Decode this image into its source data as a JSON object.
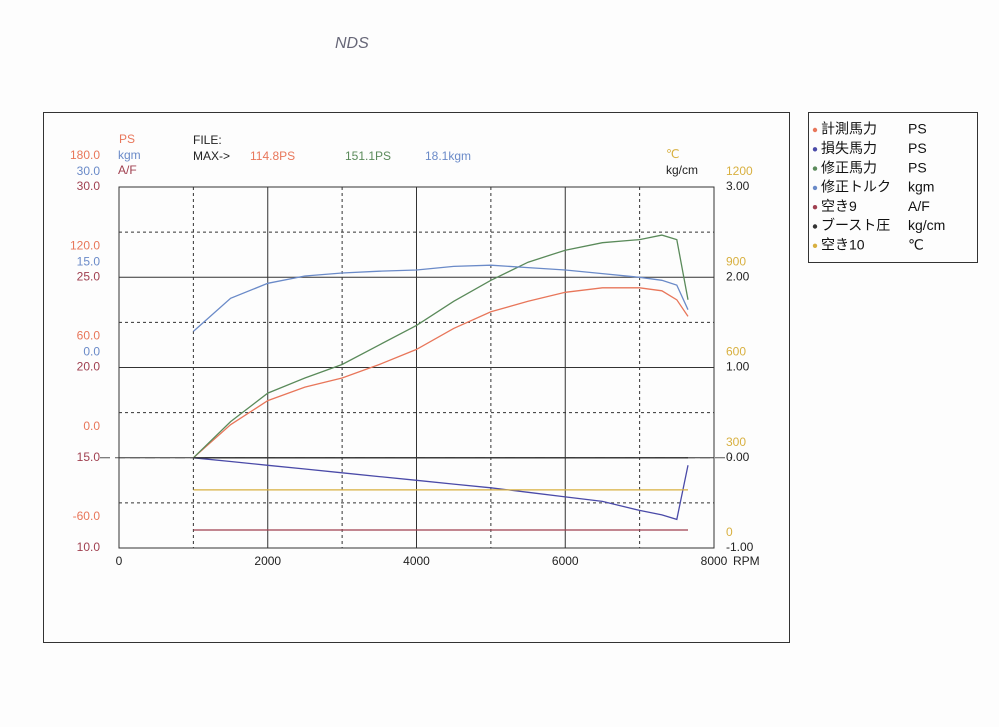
{
  "chart_data": {
    "type": "line",
    "annotation": "NDS",
    "file_label": "FILE:",
    "max_label": "MAX->",
    "max_values": [
      {
        "text": "114.8PS",
        "color": "#e8765a"
      },
      {
        "text": "151.1PS",
        "color": "#5a8a5a"
      },
      {
        "text": "18.1kgm",
        "color": "#6a8ac8"
      }
    ],
    "x_label": "RPM",
    "xlim": [
      0,
      8000
    ],
    "xticks": [
      0,
      2000,
      4000,
      6000,
      8000
    ],
    "x_minor_grid": [
      1000,
      3000,
      5000,
      7000
    ],
    "grid": true,
    "axes": [
      {
        "title": "PS",
        "side": "left",
        "color": "#e8765a",
        "lim": [
          -60,
          180
        ],
        "ticks": [
          {
            "value": 180,
            "label": "180.0"
          },
          {
            "value": 120,
            "label": "120.0"
          },
          {
            "value": 60,
            "label": "60.0"
          },
          {
            "value": 0,
            "label": "0.0"
          },
          {
            "value": -60,
            "label": "-60.0"
          }
        ],
        "minor_grid": [
          150,
          90,
          30,
          -30
        ]
      },
      {
        "title": "kgm",
        "side": "left",
        "color": "#6a8ac8",
        "lim": [
          -30,
          30
        ],
        "ticks": [
          {
            "value": 30,
            "label": "30.0"
          },
          {
            "value": 15,
            "label": "15.0"
          },
          {
            "value": 0,
            "label": "0.0"
          }
        ]
      },
      {
        "title": "A/F",
        "side": "left",
        "color": "#a04050",
        "lim": [
          10,
          30
        ],
        "ticks": [
          {
            "value": 30,
            "label": "30.0"
          },
          {
            "value": 25,
            "label": "25.0"
          },
          {
            "value": 20,
            "label": "20.0"
          },
          {
            "value": 15,
            "label": "15.0"
          },
          {
            "value": 10,
            "label": "10.0"
          }
        ]
      },
      {
        "title": "℃",
        "side": "right",
        "color": "#d8b040",
        "lim": [
          0,
          1200
        ],
        "ticks": [
          1200,
          900,
          600,
          300,
          0
        ]
      },
      {
        "title": "kg/cm",
        "side": "right",
        "color": "#222222",
        "lim": [
          -1,
          3
        ],
        "ticks": [
          {
            "value": 3,
            "label": "3.00"
          },
          {
            "value": 2,
            "label": "2.00"
          },
          {
            "value": 1,
            "label": "1.00"
          },
          {
            "value": 0,
            "label": "0.00"
          },
          {
            "value": -1,
            "label": "-1.00"
          }
        ]
      }
    ],
    "x": [
      1000,
      1500,
      2000,
      2500,
      3000,
      3500,
      4000,
      4500,
      5000,
      5500,
      6000,
      6500,
      7000,
      7300,
      7500,
      7650
    ],
    "series": [
      {
        "name": "計測馬力",
        "unit": "PS",
        "color": "#e8765a",
        "axis": 0,
        "values": [
          0,
          22,
          38,
          47,
          53,
          62,
          72,
          86,
          97,
          104,
          110,
          113,
          113,
          111,
          105,
          94
        ]
      },
      {
        "name": "損失馬力",
        "unit": "PS",
        "color": "#4a4aa8",
        "axis": 0,
        "values": [
          0,
          -2.5,
          -5,
          -7.5,
          -10,
          -12.5,
          -15,
          -17.5,
          -20,
          -23,
          -26,
          -29,
          -35,
          -38,
          -41,
          -5
        ]
      },
      {
        "name": "修正馬力",
        "unit": "PS",
        "color": "#5a8a5a",
        "axis": 0,
        "values": [
          0,
          24,
          43,
          53,
          62,
          75,
          88,
          104,
          118,
          130,
          138,
          143,
          145,
          148,
          145,
          105
        ]
      },
      {
        "name": "修正トルク",
        "unit": "kgm",
        "color": "#6a8ac8",
        "axis": 1,
        "values": [
          6,
          11.5,
          14,
          15.2,
          15.7,
          16,
          16.2,
          16.8,
          17,
          16.6,
          16.2,
          15.6,
          15,
          14.5,
          13.7,
          9.6
        ]
      },
      {
        "name": "空き9",
        "unit": "A/F",
        "color": "#a04050",
        "axis": 2,
        "values": [
          11,
          11,
          11,
          11,
          11,
          11,
          11,
          11,
          11,
          11,
          11,
          11,
          11,
          11,
          11,
          11
        ]
      },
      {
        "name": "ブースト圧",
        "unit": "kg/cm",
        "color": "#333333",
        "axis": 4,
        "values": [
          0,
          0,
          0,
          0,
          0,
          0,
          0,
          0,
          0,
          0,
          0,
          0,
          0,
          0,
          0,
          0
        ]
      },
      {
        "name": "空き10",
        "unit": "℃",
        "color": "#d8b040",
        "axis": 3,
        "values": [
          193,
          193,
          193,
          193,
          193,
          193,
          193,
          193,
          193,
          193,
          193,
          193,
          193,
          193,
          193,
          193
        ]
      }
    ]
  }
}
